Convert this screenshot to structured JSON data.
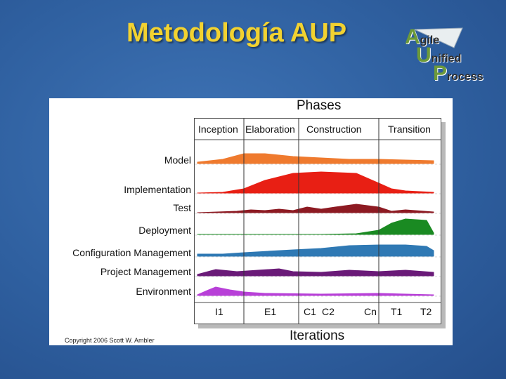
{
  "slide": {
    "title": "Metodología AUP"
  },
  "logo": {
    "line1_initial": "A",
    "line1_rest": "gile",
    "line2_initial": "U",
    "line2_rest": "nified",
    "line3_initial": "P",
    "line3_rest": "rocess"
  },
  "diagram": {
    "header": "Phases",
    "footer": "Iterations",
    "phases": [
      "Inception",
      "Elaboration",
      "Construction",
      "Transition"
    ],
    "disciplines": [
      {
        "name": "Model",
        "color": "#ef7a2e"
      },
      {
        "name": "Implementation",
        "color": "#e81f14"
      },
      {
        "name": "Test",
        "color": "#8d1a22"
      },
      {
        "name": "Deployment",
        "color": "#1a8a22"
      },
      {
        "name": "Configuration Management",
        "color": "#2f79b4"
      },
      {
        "name": "Project Management",
        "color": "#6a1a78"
      },
      {
        "name": "Environment",
        "color": "#b840d8"
      }
    ],
    "iterations": [
      "I1",
      "E1",
      "C1",
      "C2",
      "Cn",
      "T1",
      "T2"
    ],
    "copyright": "Copyright 2006 Scott W. Ambler"
  }
}
